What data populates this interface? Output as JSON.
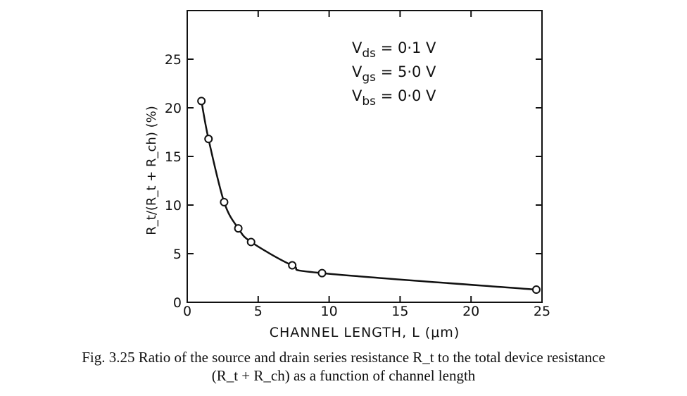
{
  "chart_data": {
    "type": "line",
    "xlabel": "CHANNEL LENGTH, L (μm)",
    "ylabel": "R_t/(R_t + R_ch) (%)",
    "xlim": [
      0,
      25
    ],
    "ylim": [
      0,
      30
    ],
    "x_ticks": [
      0,
      5,
      10,
      15,
      20,
      25
    ],
    "y_ticks": [
      0,
      5,
      10,
      15,
      20,
      25
    ],
    "grid": false,
    "annotations": [
      "V_ds = 0·1 V",
      "V_gs = 5·0 V",
      "V_bs = 0·0 V"
    ],
    "series": [
      {
        "x": [
          1.0,
          1.5,
          2.6,
          3.6,
          4.5,
          7.4,
          9.5,
          24.6
        ],
        "y": [
          20.7,
          16.8,
          10.3,
          7.6,
          6.2,
          3.8,
          3.0,
          1.3
        ]
      }
    ]
  },
  "caption": {
    "line1": "Fig. 3.25 Ratio of the source and drain series resistance R_t to the total device resistance",
    "line2": "(R_t + R_ch) as a function of channel length"
  }
}
